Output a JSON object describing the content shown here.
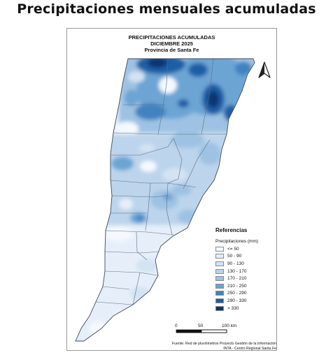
{
  "heading": "Precipitaciones mensuales acumuladas",
  "map": {
    "title_lines": [
      "PRECIPITACIONES ACUMULADAS",
      "DICIEMBRE 2025",
      "Provincia de Santa Fe"
    ]
  },
  "legend": {
    "title": "Referencias",
    "subtitle": "Precipitaciones (mm)",
    "classes": [
      {
        "label": "<= 50",
        "color": "#f5f9ff"
      },
      {
        "label": "50 - 90",
        "color": "#e6eff9"
      },
      {
        "label": "90 - 130",
        "color": "#d3e3f3"
      },
      {
        "label": "130 - 170",
        "color": "#bcd4ec"
      },
      {
        "label": "170 - 210",
        "color": "#9dc2e3"
      },
      {
        "label": "210 - 250",
        "color": "#6ca4d4"
      },
      {
        "label": "250 - 290",
        "color": "#3f83c0"
      },
      {
        "label": "290 - 330",
        "color": "#1b5fa5"
      },
      {
        "label": "> 330",
        "color": "#0b3470"
      }
    ]
  },
  "scale": {
    "labels": [
      "0",
      "50",
      "100 km"
    ]
  },
  "north_arrow": {
    "icon": "north-arrow-icon"
  },
  "source": {
    "line1": "Fuente: Red de pluviómetros Proyecto Gestión de la Información",
    "line2": "INTA - Centro Regional Santa Fe"
  }
}
